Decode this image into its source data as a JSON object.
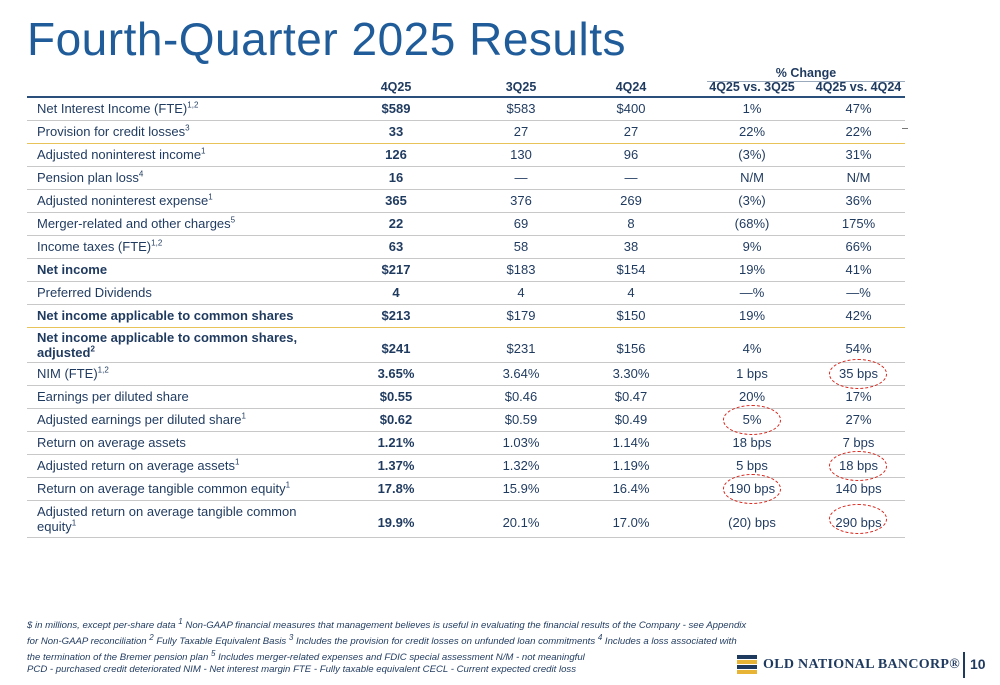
{
  "title": "Fourth-Quarter 2025 Results",
  "table": {
    "pct_change_label": "% Change",
    "headers": [
      "4Q25",
      "3Q25",
      "4Q24",
      "4Q25 vs. 3Q25",
      "4Q25 vs. 4Q24"
    ],
    "rows": [
      {
        "label": "Net Interest Income (FTE)",
        "sup": "1,2",
        "bold": false,
        "values": [
          "$589",
          "$583",
          "$400",
          "1%",
          "47%"
        ]
      },
      {
        "label": "Provision for credit losses",
        "sup": "3",
        "bold": false,
        "values": [
          "33",
          "27",
          "27",
          "22%",
          "22%"
        ]
      },
      {
        "label": "Adjusted noninterest income",
        "sup": "1",
        "bold": false,
        "values": [
          "126",
          "130",
          "96",
          "(3%)",
          "31%"
        ]
      },
      {
        "label": "Pension plan loss",
        "sup": "4",
        "bold": false,
        "values": [
          "16",
          "—",
          "—",
          "N/M",
          "N/M"
        ]
      },
      {
        "label": "Adjusted noninterest expense",
        "sup": "1",
        "bold": false,
        "values": [
          "365",
          "376",
          "269",
          "(3%)",
          "36%"
        ]
      },
      {
        "label": "Merger-related and other charges",
        "sup": "5",
        "bold": false,
        "values": [
          "22",
          "69",
          "8",
          "(68%)",
          "175%"
        ]
      },
      {
        "label": "Income taxes (FTE)",
        "sup": "1,2",
        "bold": false,
        "values": [
          "63",
          "58",
          "38",
          "9%",
          "66%"
        ]
      },
      {
        "label": "Net income",
        "sup": "",
        "bold": true,
        "values": [
          "$217",
          "$183",
          "$154",
          "19%",
          "41%"
        ]
      },
      {
        "label": "Preferred Dividends",
        "sup": "",
        "bold": false,
        "values": [
          "4",
          "4",
          "4",
          "—%",
          "—%"
        ]
      },
      {
        "label": "Net income applicable to common shares",
        "sup": "",
        "bold": true,
        "values": [
          "$213",
          "$179",
          "$150",
          "19%",
          "42%"
        ]
      },
      {
        "label": "Net income applicable to common shares,",
        "label2": "adjusted",
        "sup": "2",
        "bold": true,
        "values": [
          "$241",
          "$231",
          "$156",
          "4%",
          "54%"
        ]
      },
      {
        "label": "NIM (FTE)",
        "sup": "1,2",
        "bold": false,
        "values": [
          "3.65%",
          "3.64%",
          "3.30%",
          "1 bps",
          "35 bps"
        ]
      },
      {
        "label": "Earnings per diluted share",
        "sup": "",
        "bold": false,
        "values": [
          "$0.55",
          "$0.46",
          "$0.47",
          "20%",
          "17%"
        ]
      },
      {
        "label": "Adjusted earnings per diluted share",
        "sup": "1",
        "bold": false,
        "values": [
          "$0.62",
          "$0.59",
          "$0.49",
          "5%",
          "27%"
        ]
      },
      {
        "label": "Return on average assets",
        "sup": "",
        "bold": false,
        "values": [
          "1.21%",
          "1.03%",
          "1.14%",
          "18 bps",
          "7 bps"
        ]
      },
      {
        "label": "Adjusted return on average assets",
        "sup": "1",
        "bold": false,
        "values": [
          "1.37%",
          "1.32%",
          "1.19%",
          "5 bps",
          "18 bps"
        ]
      },
      {
        "label": "Return on average tangible common equity",
        "sup": "1",
        "bold": false,
        "values": [
          "17.8%",
          "15.9%",
          "16.4%",
          "190 bps",
          "140 bps"
        ]
      },
      {
        "label": "Adjusted return on average tangible common",
        "label2": "equity",
        "sup": "1",
        "bold": false,
        "values": [
          "19.9%",
          "20.1%",
          "17.0%",
          "(20) bps",
          "290 bps"
        ]
      }
    ]
  },
  "footnotes": [
    "$ in millions, except per-share data   ",
    "1",
    " Non-GAAP financial measures that management believes is useful in evaluating the financial results of the Company - see Appendix for Non-GAAP reconciliation   ",
    "2",
    " Fully Taxable Equivalent Basis  ",
    "3",
    " Includes the provision for credit losses on unfunded loan commitments   ",
    "4",
    " Includes a loss associated with the termination of the Bremer pension plan  ",
    "5",
    " Includes merger-related expenses and FDIC special assessment    N/M - not meaningful",
    "PCD - purchased credit deteriorated  NIM - Net interest margin    FTE - Fully taxable equivalent    CECL - Current expected credit loss"
  ],
  "logo_text": "OLD NATIONAL BANCORP®",
  "page_number": "10",
  "colors": {
    "title": "#1f5c99",
    "text": "#1f3a5f",
    "highlight_circle": "#d9261c",
    "row_divider_accent": "#e8c35a"
  }
}
